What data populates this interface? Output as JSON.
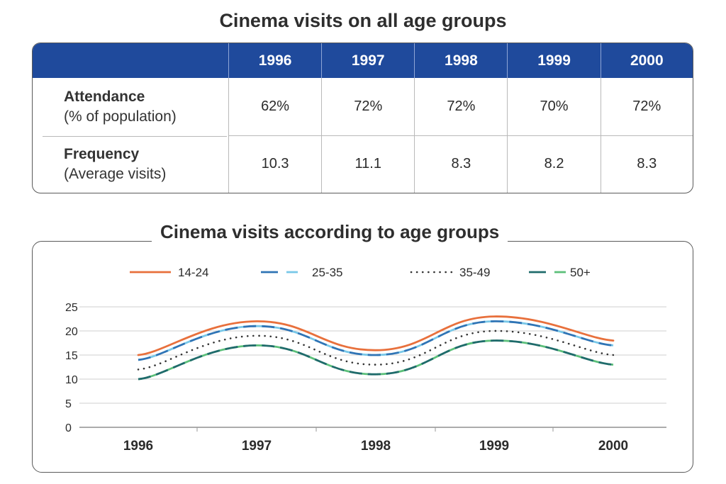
{
  "table": {
    "title": "Cinema visits on all age groups",
    "years": [
      "1996",
      "1997",
      "1998",
      "1999",
      "2000"
    ],
    "rows": [
      {
        "label": "Attendance",
        "sublabel": "(% of population)",
        "values": [
          "62%",
          "72%",
          "72%",
          "70%",
          "72%"
        ]
      },
      {
        "label": "Frequency",
        "sublabel": "(Average visits)",
        "values": [
          "10.3",
          "11.1",
          "8.3",
          "8.2",
          "8.3"
        ]
      }
    ]
  },
  "chart_data": {
    "type": "line",
    "title": "Cinema visits according to age groups",
    "x": [
      "1996",
      "1997",
      "1998",
      "1999",
      "2000"
    ],
    "ylim": [
      0,
      25
    ],
    "yticks": [
      "0",
      "5",
      "10",
      "15",
      "20",
      "25"
    ],
    "grid": true,
    "legend_position": "top",
    "series": [
      {
        "name": "14-24",
        "values": [
          15,
          22,
          16,
          23,
          18
        ],
        "color": "#e8703c",
        "style": "solid"
      },
      {
        "name": "25-35",
        "values": [
          14,
          21,
          15,
          22,
          17
        ],
        "color": "#2f74b5",
        "color2": "#79c8e8",
        "style": "dashed-two-tone"
      },
      {
        "name": "35-49",
        "values": [
          12,
          19,
          13,
          20,
          15
        ],
        "color": "#333333",
        "style": "dotted"
      },
      {
        "name": "50+",
        "values": [
          10,
          17,
          11,
          18,
          13
        ],
        "color": "#1f6b6b",
        "color2": "#5cc07a",
        "style": "dashed-two-tone"
      }
    ]
  }
}
